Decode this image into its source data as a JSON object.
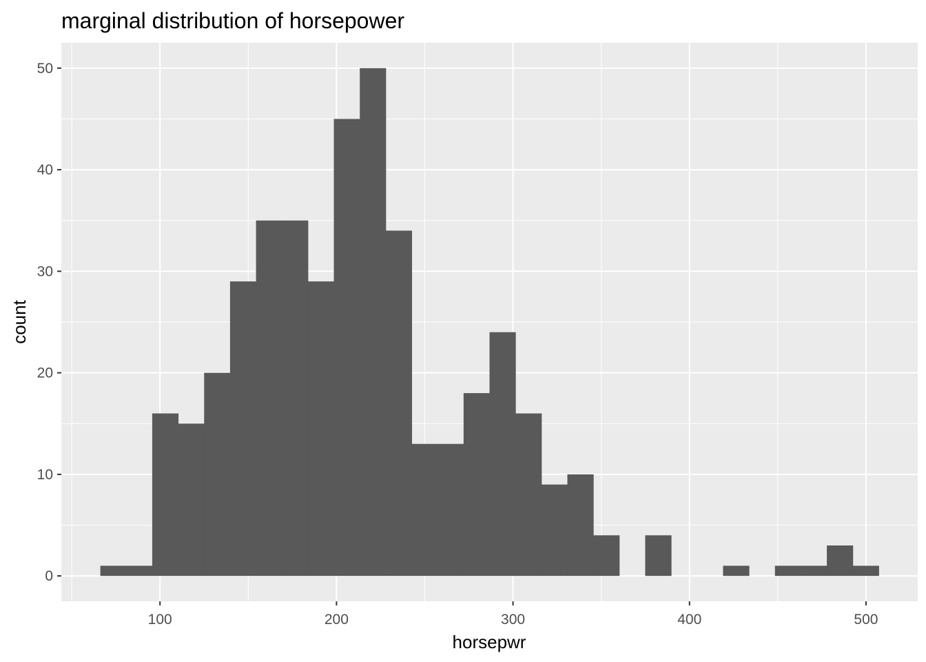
{
  "chart_data": {
    "type": "bar",
    "title": "marginal distribution of horsepower",
    "xlabel": "horsepwr",
    "ylabel": "count",
    "bin_width": 14.7,
    "bins": [
      {
        "x0": 66.2,
        "x1": 80.9,
        "count": 1
      },
      {
        "x0": 80.9,
        "x1": 95.6,
        "count": 1
      },
      {
        "x0": 95.6,
        "x1": 110.3,
        "count": 16
      },
      {
        "x0": 110.3,
        "x1": 125.0,
        "count": 15
      },
      {
        "x0": 125.0,
        "x1": 139.7,
        "count": 20
      },
      {
        "x0": 139.7,
        "x1": 154.4,
        "count": 29
      },
      {
        "x0": 154.4,
        "x1": 169.1,
        "count": 35
      },
      {
        "x0": 169.1,
        "x1": 183.8,
        "count": 35
      },
      {
        "x0": 183.8,
        "x1": 198.5,
        "count": 29
      },
      {
        "x0": 198.5,
        "x1": 213.2,
        "count": 45
      },
      {
        "x0": 213.2,
        "x1": 227.9,
        "count": 50
      },
      {
        "x0": 227.9,
        "x1": 242.6,
        "count": 34
      },
      {
        "x0": 242.6,
        "x1": 257.3,
        "count": 13
      },
      {
        "x0": 257.3,
        "x1": 272.0,
        "count": 13
      },
      {
        "x0": 272.0,
        "x1": 286.7,
        "count": 18
      },
      {
        "x0": 286.7,
        "x1": 301.4,
        "count": 24
      },
      {
        "x0": 301.4,
        "x1": 316.1,
        "count": 16
      },
      {
        "x0": 316.1,
        "x1": 330.8,
        "count": 9
      },
      {
        "x0": 330.8,
        "x1": 345.5,
        "count": 10
      },
      {
        "x0": 345.5,
        "x1": 360.2,
        "count": 4
      },
      {
        "x0": 360.2,
        "x1": 374.9,
        "count": 0
      },
      {
        "x0": 374.9,
        "x1": 389.6,
        "count": 4
      },
      {
        "x0": 389.6,
        "x1": 404.3,
        "count": 0
      },
      {
        "x0": 404.3,
        "x1": 419.0,
        "count": 0
      },
      {
        "x0": 419.0,
        "x1": 433.7,
        "count": 1
      },
      {
        "x0": 433.7,
        "x1": 448.4,
        "count": 0
      },
      {
        "x0": 448.4,
        "x1": 463.1,
        "count": 1
      },
      {
        "x0": 463.1,
        "x1": 477.8,
        "count": 1
      },
      {
        "x0": 477.8,
        "x1": 492.5,
        "count": 3
      },
      {
        "x0": 492.5,
        "x1": 507.2,
        "count": 1
      }
    ],
    "xlim": [
      44.1,
      529.3
    ],
    "ylim": [
      -2.5,
      52.5
    ],
    "x_ticks": [
      100,
      200,
      300,
      400,
      500
    ],
    "y_ticks": [
      0,
      10,
      20,
      30,
      40,
      50
    ],
    "x_tick_labels": [
      "100",
      "200",
      "300",
      "400",
      "500"
    ],
    "y_tick_labels": [
      "0",
      "10",
      "20",
      "30",
      "40",
      "50"
    ],
    "grid": true,
    "legend": "none",
    "colors": {
      "bar": "#595959",
      "panel": "#ebebeb",
      "grid": "#ffffff",
      "tick_text": "#4d4d4d",
      "tick_mark": "#333333"
    }
  }
}
